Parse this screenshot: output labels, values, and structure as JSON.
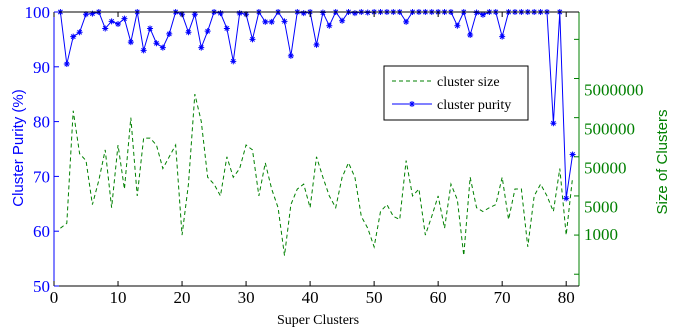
{
  "chart_data": {
    "type": "line",
    "xlabel": "Super Clusters",
    "ylabel_left": "Cluster Purity (%)",
    "ylabel_right": "Size of Clusters",
    "xlim": [
      0,
      82
    ],
    "ylim_left": [
      50,
      100
    ],
    "ylim_right_log": [
      50,
      500000000
    ],
    "x_ticks": [
      0,
      10,
      20,
      30,
      40,
      50,
      60,
      70,
      80
    ],
    "y_ticks_left": [
      50,
      60,
      70,
      80,
      90,
      100
    ],
    "y_ticks_right": [
      {
        "value": 1000,
        "label": "1000"
      },
      {
        "value": 5000,
        "label": "5000"
      },
      {
        "value": 50000,
        "label": "50000"
      },
      {
        "value": 500000,
        "label": "500000"
      },
      {
        "value": 5000000,
        "label": "5000000"
      }
    ],
    "grid": false,
    "legend_position": "upper-right",
    "colors": {
      "purity": "#0000ff",
      "size": "#008000",
      "right_axis": "#008000",
      "left_axis": "#0000ff"
    },
    "series": [
      {
        "name": "cluster size",
        "axis": "right",
        "style": "dashed",
        "x": [
          1,
          2,
          3,
          4,
          5,
          6,
          7,
          8,
          9,
          10,
          11,
          12,
          13,
          14,
          15,
          16,
          17,
          18,
          19,
          20,
          21,
          22,
          23,
          24,
          25,
          26,
          27,
          28,
          29,
          30,
          31,
          32,
          33,
          34,
          35,
          36,
          37,
          38,
          39,
          40,
          41,
          42,
          43,
          44,
          45,
          46,
          47,
          48,
          49,
          50,
          51,
          52,
          53,
          54,
          55,
          56,
          57,
          58,
          59,
          60,
          61,
          62,
          63,
          64,
          65,
          66,
          67,
          68,
          69,
          70,
          71,
          72,
          73,
          74,
          75,
          76,
          77,
          78,
          79,
          80,
          81
        ],
        "values": [
          1500,
          2000,
          1500000,
          120000,
          80000,
          6000,
          25000,
          150000,
          5000,
          200000,
          15000,
          1000000,
          10000,
          300000,
          300000,
          200000,
          50000,
          100000,
          200000,
          1000,
          20000,
          4000000,
          800000,
          30000,
          20000,
          10000,
          100000,
          30000,
          50000,
          200000,
          150000,
          10000,
          70000,
          15000,
          5000,
          300,
          6000,
          15000,
          20000,
          5000,
          100000,
          30000,
          10000,
          5000,
          30000,
          70000,
          30000,
          3000,
          1500,
          500,
          4000,
          6000,
          3000,
          2500,
          80000,
          10000,
          15000,
          1000,
          3000,
          10000,
          1500,
          20000,
          8000,
          300,
          30000,
          5000,
          4000,
          5000,
          6000,
          30000,
          2500,
          15000,
          15000,
          500,
          10000,
          20000,
          10000,
          4000,
          50000,
          1000,
          30000
        ]
      },
      {
        "name": "cluster purity",
        "axis": "left",
        "style": "solid-star",
        "x": [
          1,
          2,
          3,
          4,
          5,
          6,
          7,
          8,
          9,
          10,
          11,
          12,
          13,
          14,
          15,
          16,
          17,
          18,
          19,
          20,
          21,
          22,
          23,
          24,
          25,
          26,
          27,
          28,
          29,
          30,
          31,
          32,
          33,
          34,
          35,
          36,
          37,
          38,
          39,
          40,
          41,
          42,
          43,
          44,
          45,
          46,
          47,
          48,
          49,
          50,
          51,
          52,
          53,
          54,
          55,
          56,
          57,
          58,
          59,
          60,
          61,
          62,
          63,
          64,
          65,
          66,
          67,
          68,
          69,
          70,
          71,
          72,
          73,
          74,
          75,
          76,
          77,
          78,
          79,
          80,
          81
        ],
        "values": [
          100,
          90.5,
          95.5,
          96.3,
          99.6,
          99.7,
          100,
          97,
          98.3,
          97.8,
          98.8,
          94.5,
          100,
          93,
          97,
          94.3,
          93.5,
          96,
          100,
          99.6,
          96.3,
          99.6,
          93.5,
          96.5,
          100,
          99.8,
          97,
          91,
          99.8,
          99.6,
          95,
          100,
          98.2,
          98.2,
          100,
          98.3,
          92,
          100,
          99.8,
          100,
          94,
          99.9,
          97.5,
          100,
          98.4,
          100,
          99.8,
          100,
          99.9,
          100,
          100,
          100,
          100,
          100,
          98.2,
          100,
          100,
          100,
          100,
          100,
          100,
          100,
          97.5,
          100,
          95.8,
          99.9,
          99.5,
          100,
          100,
          95.5,
          100,
          100,
          100,
          100,
          100,
          100,
          100,
          79.7,
          100,
          66,
          74
        ]
      }
    ]
  }
}
